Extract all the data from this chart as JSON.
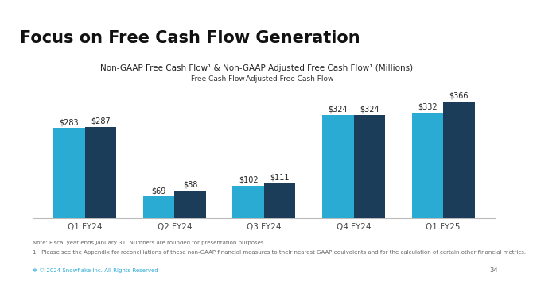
{
  "title": "Focus on Free Cash Flow Generation",
  "chart_title": "Non-GAAP Free Cash Flow¹ & Non-GAAP Adjusted Free Cash Flow¹ (Millions)",
  "categories": [
    "Q1 FY24",
    "Q2 FY24",
    "Q3 FY24",
    "Q4 FY24",
    "Q1 FY25"
  ],
  "free_cash_flow": [
    283,
    69,
    102,
    324,
    332
  ],
  "adjusted_fcf": [
    287,
    88,
    111,
    324,
    366
  ],
  "bar_width": 0.35,
  "legend_labels": [
    "Free Cash Flow",
    "Adjusted Free Cash Flow"
  ],
  "footnote1": "Note: Fiscal year ends January 31. Numbers are rounded for presentation purposes.",
  "footnote2": "1.  Please see the Appendix for reconciliations of these non-GAAP financial measures to their nearest GAAP equivalents and for the calculation of certain other financial metrics.",
  "left_bar_color": "#29ABD4",
  "right_bar_color": "#1B3D5A",
  "title_accent_color": "#29ABD4",
  "background_color": "#FFFFFF",
  "title_color": "#111111",
  "label_color": "#222222",
  "footnote_color": "#666666",
  "copyright_color": "#29ABD4",
  "page_num": "34",
  "ylim": [
    0,
    420
  ]
}
